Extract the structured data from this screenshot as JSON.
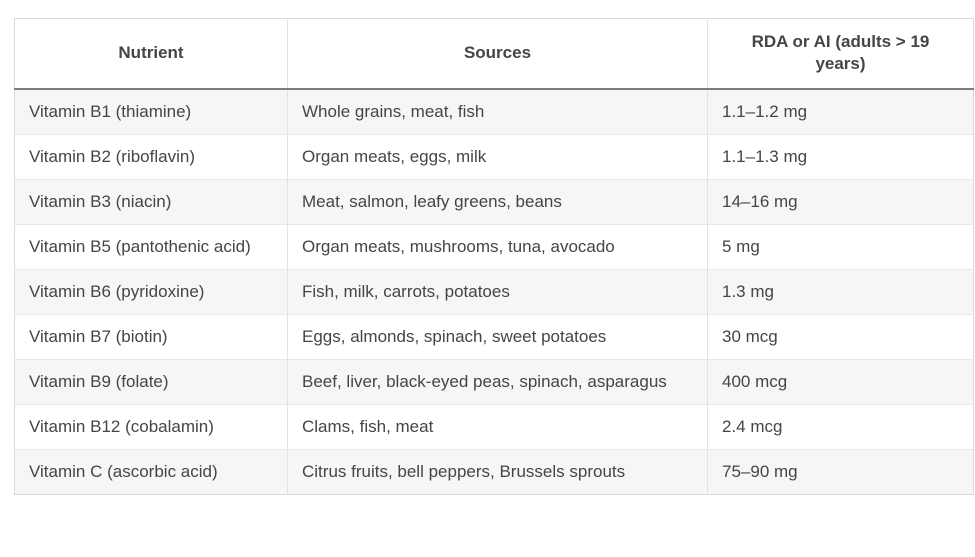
{
  "table": {
    "columns": [
      {
        "label": "Nutrient"
      },
      {
        "label": "Sources"
      },
      {
        "label": "RDA or AI (adults > 19 years)"
      }
    ],
    "rows": [
      {
        "nutrient": "Vitamin B1 (thiamine)",
        "sources": "Whole grains, meat, fish",
        "rda": "1.1–1.2 mg"
      },
      {
        "nutrient": "Vitamin B2 (riboflavin)",
        "sources": "Organ meats, eggs, milk",
        "rda": "1.1–1.3 mg"
      },
      {
        "nutrient": "Vitamin B3 (niacin)",
        "sources": "Meat, salmon, leafy greens, beans",
        "rda": "14–16 mg"
      },
      {
        "nutrient": "Vitamin B5 (pantothenic acid)",
        "sources": "Organ meats, mushrooms, tuna, avocado",
        "rda": "5 mg"
      },
      {
        "nutrient": "Vitamin B6 (pyridoxine)",
        "sources": "Fish, milk, carrots, potatoes",
        "rda": "1.3 mg"
      },
      {
        "nutrient": "Vitamin B7 (biotin)",
        "sources": "Eggs, almonds, spinach, sweet potatoes",
        "rda": "30 mcg"
      },
      {
        "nutrient": "Vitamin B9 (folate)",
        "sources": "Beef, liver, black-eyed peas, spinach, asparagus",
        "rda": "400 mcg"
      },
      {
        "nutrient": "Vitamin B12 (cobalamin)",
        "sources": "Clams, fish, meat",
        "rda": "2.4 mcg"
      },
      {
        "nutrient": "Vitamin C (ascorbic acid)",
        "sources": "Citrus fruits, bell peppers, Brussels sprouts",
        "rda": "75–90 mg"
      }
    ],
    "colors": {
      "stripe_row_bg": "#f6f6f6",
      "row_border": "#e9e9e9",
      "column_border": "#e3e3e3",
      "outer_border": "#d9d9d9",
      "header_rule": "#7d7d7d",
      "text": "#454545",
      "page_bg": "#ffffff"
    }
  }
}
